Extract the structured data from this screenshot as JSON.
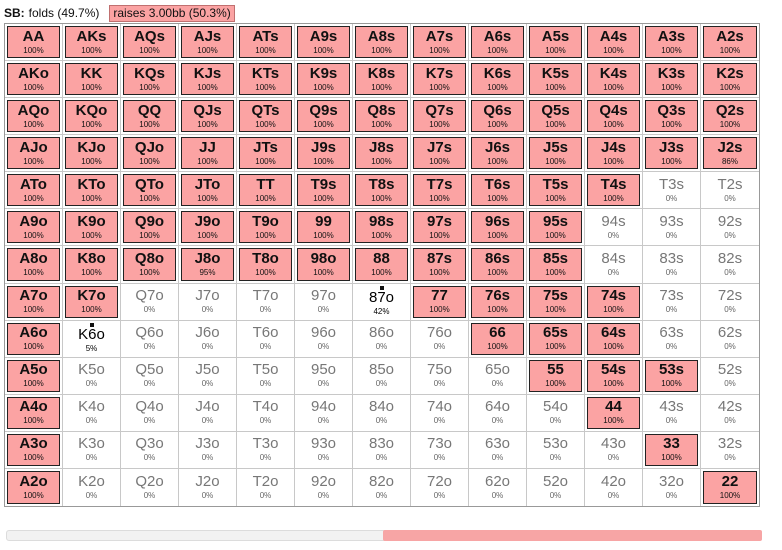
{
  "header": {
    "position": "SB:",
    "fold_text": "folds (49.7%)",
    "raise_text": "raises 3.00bb (50.3%)"
  },
  "colors": {
    "raise": "#fba3a3",
    "fold": "#ffffff"
  },
  "grid": {
    "rows": [
      [
        {
          "hand": "AA",
          "pct": "100%",
          "action": "raise"
        },
        {
          "hand": "AKs",
          "pct": "100%",
          "action": "raise"
        },
        {
          "hand": "AQs",
          "pct": "100%",
          "action": "raise"
        },
        {
          "hand": "AJs",
          "pct": "100%",
          "action": "raise"
        },
        {
          "hand": "ATs",
          "pct": "100%",
          "action": "raise"
        },
        {
          "hand": "A9s",
          "pct": "100%",
          "action": "raise"
        },
        {
          "hand": "A8s",
          "pct": "100%",
          "action": "raise"
        },
        {
          "hand": "A7s",
          "pct": "100%",
          "action": "raise"
        },
        {
          "hand": "A6s",
          "pct": "100%",
          "action": "raise"
        },
        {
          "hand": "A5s",
          "pct": "100%",
          "action": "raise"
        },
        {
          "hand": "A4s",
          "pct": "100%",
          "action": "raise"
        },
        {
          "hand": "A3s",
          "pct": "100%",
          "action": "raise"
        },
        {
          "hand": "A2s",
          "pct": "100%",
          "action": "raise"
        }
      ],
      [
        {
          "hand": "AKo",
          "pct": "100%",
          "action": "raise"
        },
        {
          "hand": "KK",
          "pct": "100%",
          "action": "raise"
        },
        {
          "hand": "KQs",
          "pct": "100%",
          "action": "raise"
        },
        {
          "hand": "KJs",
          "pct": "100%",
          "action": "raise"
        },
        {
          "hand": "KTs",
          "pct": "100%",
          "action": "raise"
        },
        {
          "hand": "K9s",
          "pct": "100%",
          "action": "raise"
        },
        {
          "hand": "K8s",
          "pct": "100%",
          "action": "raise"
        },
        {
          "hand": "K7s",
          "pct": "100%",
          "action": "raise"
        },
        {
          "hand": "K6s",
          "pct": "100%",
          "action": "raise"
        },
        {
          "hand": "K5s",
          "pct": "100%",
          "action": "raise"
        },
        {
          "hand": "K4s",
          "pct": "100%",
          "action": "raise"
        },
        {
          "hand": "K3s",
          "pct": "100%",
          "action": "raise"
        },
        {
          "hand": "K2s",
          "pct": "100%",
          "action": "raise"
        }
      ],
      [
        {
          "hand": "AQo",
          "pct": "100%",
          "action": "raise"
        },
        {
          "hand": "KQo",
          "pct": "100%",
          "action": "raise"
        },
        {
          "hand": "QQ",
          "pct": "100%",
          "action": "raise"
        },
        {
          "hand": "QJs",
          "pct": "100%",
          "action": "raise"
        },
        {
          "hand": "QTs",
          "pct": "100%",
          "action": "raise"
        },
        {
          "hand": "Q9s",
          "pct": "100%",
          "action": "raise"
        },
        {
          "hand": "Q8s",
          "pct": "100%",
          "action": "raise"
        },
        {
          "hand": "Q7s",
          "pct": "100%",
          "action": "raise"
        },
        {
          "hand": "Q6s",
          "pct": "100%",
          "action": "raise"
        },
        {
          "hand": "Q5s",
          "pct": "100%",
          "action": "raise"
        },
        {
          "hand": "Q4s",
          "pct": "100%",
          "action": "raise"
        },
        {
          "hand": "Q3s",
          "pct": "100%",
          "action": "raise"
        },
        {
          "hand": "Q2s",
          "pct": "100%",
          "action": "raise"
        }
      ],
      [
        {
          "hand": "AJo",
          "pct": "100%",
          "action": "raise"
        },
        {
          "hand": "KJo",
          "pct": "100%",
          "action": "raise"
        },
        {
          "hand": "QJo",
          "pct": "100%",
          "action": "raise"
        },
        {
          "hand": "JJ",
          "pct": "100%",
          "action": "raise"
        },
        {
          "hand": "JTs",
          "pct": "100%",
          "action": "raise"
        },
        {
          "hand": "J9s",
          "pct": "100%",
          "action": "raise"
        },
        {
          "hand": "J8s",
          "pct": "100%",
          "action": "raise"
        },
        {
          "hand": "J7s",
          "pct": "100%",
          "action": "raise"
        },
        {
          "hand": "J6s",
          "pct": "100%",
          "action": "raise"
        },
        {
          "hand": "J5s",
          "pct": "100%",
          "action": "raise"
        },
        {
          "hand": "J4s",
          "pct": "100%",
          "action": "raise"
        },
        {
          "hand": "J3s",
          "pct": "100%",
          "action": "raise"
        },
        {
          "hand": "J2s",
          "pct": "86%",
          "action": "partial"
        }
      ],
      [
        {
          "hand": "ATo",
          "pct": "100%",
          "action": "raise"
        },
        {
          "hand": "KTo",
          "pct": "100%",
          "action": "raise"
        },
        {
          "hand": "QTo",
          "pct": "100%",
          "action": "raise"
        },
        {
          "hand": "JTo",
          "pct": "100%",
          "action": "raise"
        },
        {
          "hand": "TT",
          "pct": "100%",
          "action": "raise"
        },
        {
          "hand": "T9s",
          "pct": "100%",
          "action": "raise"
        },
        {
          "hand": "T8s",
          "pct": "100%",
          "action": "raise"
        },
        {
          "hand": "T7s",
          "pct": "100%",
          "action": "raise"
        },
        {
          "hand": "T6s",
          "pct": "100%",
          "action": "raise"
        },
        {
          "hand": "T5s",
          "pct": "100%",
          "action": "raise"
        },
        {
          "hand": "T4s",
          "pct": "100%",
          "action": "raise"
        },
        {
          "hand": "T3s",
          "pct": "0%",
          "action": "fold"
        },
        {
          "hand": "T2s",
          "pct": "0%",
          "action": "fold"
        }
      ],
      [
        {
          "hand": "A9o",
          "pct": "100%",
          "action": "raise"
        },
        {
          "hand": "K9o",
          "pct": "100%",
          "action": "raise"
        },
        {
          "hand": "Q9o",
          "pct": "100%",
          "action": "raise"
        },
        {
          "hand": "J9o",
          "pct": "100%",
          "action": "raise"
        },
        {
          "hand": "T9o",
          "pct": "100%",
          "action": "raise"
        },
        {
          "hand": "99",
          "pct": "100%",
          "action": "raise"
        },
        {
          "hand": "98s",
          "pct": "100%",
          "action": "raise"
        },
        {
          "hand": "97s",
          "pct": "100%",
          "action": "raise"
        },
        {
          "hand": "96s",
          "pct": "100%",
          "action": "raise"
        },
        {
          "hand": "95s",
          "pct": "100%",
          "action": "raise"
        },
        {
          "hand": "94s",
          "pct": "0%",
          "action": "fold"
        },
        {
          "hand": "93s",
          "pct": "0%",
          "action": "fold"
        },
        {
          "hand": "92s",
          "pct": "0%",
          "action": "fold"
        }
      ],
      [
        {
          "hand": "A8o",
          "pct": "100%",
          "action": "raise"
        },
        {
          "hand": "K8o",
          "pct": "100%",
          "action": "raise"
        },
        {
          "hand": "Q8o",
          "pct": "100%",
          "action": "raise"
        },
        {
          "hand": "J8o",
          "pct": "95%",
          "action": "partial"
        },
        {
          "hand": "T8o",
          "pct": "100%",
          "action": "raise"
        },
        {
          "hand": "98o",
          "pct": "100%",
          "action": "raise"
        },
        {
          "hand": "88",
          "pct": "100%",
          "action": "raise"
        },
        {
          "hand": "87s",
          "pct": "100%",
          "action": "raise"
        },
        {
          "hand": "86s",
          "pct": "100%",
          "action": "raise"
        },
        {
          "hand": "85s",
          "pct": "100%",
          "action": "raise"
        },
        {
          "hand": "84s",
          "pct": "0%",
          "action": "fold"
        },
        {
          "hand": "83s",
          "pct": "0%",
          "action": "fold"
        },
        {
          "hand": "82s",
          "pct": "0%",
          "action": "fold"
        }
      ],
      [
        {
          "hand": "A7o",
          "pct": "100%",
          "action": "raise"
        },
        {
          "hand": "K7o",
          "pct": "100%",
          "action": "raise"
        },
        {
          "hand": "Q7o",
          "pct": "0%",
          "action": "fold"
        },
        {
          "hand": "J7o",
          "pct": "0%",
          "action": "fold"
        },
        {
          "hand": "T7o",
          "pct": "0%",
          "action": "fold"
        },
        {
          "hand": "97o",
          "pct": "0%",
          "action": "fold"
        },
        {
          "hand": "87o",
          "pct": "42%",
          "action": "highlight"
        },
        {
          "hand": "77",
          "pct": "100%",
          "action": "raise"
        },
        {
          "hand": "76s",
          "pct": "100%",
          "action": "raise"
        },
        {
          "hand": "75s",
          "pct": "100%",
          "action": "raise"
        },
        {
          "hand": "74s",
          "pct": "100%",
          "action": "raise"
        },
        {
          "hand": "73s",
          "pct": "0%",
          "action": "fold"
        },
        {
          "hand": "72s",
          "pct": "0%",
          "action": "fold"
        }
      ],
      [
        {
          "hand": "A6o",
          "pct": "100%",
          "action": "raise"
        },
        {
          "hand": "K6o",
          "pct": "5%",
          "action": "highlight"
        },
        {
          "hand": "Q6o",
          "pct": "0%",
          "action": "fold"
        },
        {
          "hand": "J6o",
          "pct": "0%",
          "action": "fold"
        },
        {
          "hand": "T6o",
          "pct": "0%",
          "action": "fold"
        },
        {
          "hand": "96o",
          "pct": "0%",
          "action": "fold"
        },
        {
          "hand": "86o",
          "pct": "0%",
          "action": "fold"
        },
        {
          "hand": "76o",
          "pct": "0%",
          "action": "fold"
        },
        {
          "hand": "66",
          "pct": "100%",
          "action": "raise"
        },
        {
          "hand": "65s",
          "pct": "100%",
          "action": "raise"
        },
        {
          "hand": "64s",
          "pct": "100%",
          "action": "raise"
        },
        {
          "hand": "63s",
          "pct": "0%",
          "action": "fold"
        },
        {
          "hand": "62s",
          "pct": "0%",
          "action": "fold"
        }
      ],
      [
        {
          "hand": "A5o",
          "pct": "100%",
          "action": "raise"
        },
        {
          "hand": "K5o",
          "pct": "0%",
          "action": "fold"
        },
        {
          "hand": "Q5o",
          "pct": "0%",
          "action": "fold"
        },
        {
          "hand": "J5o",
          "pct": "0%",
          "action": "fold"
        },
        {
          "hand": "T5o",
          "pct": "0%",
          "action": "fold"
        },
        {
          "hand": "95o",
          "pct": "0%",
          "action": "fold"
        },
        {
          "hand": "85o",
          "pct": "0%",
          "action": "fold"
        },
        {
          "hand": "75o",
          "pct": "0%",
          "action": "fold"
        },
        {
          "hand": "65o",
          "pct": "0%",
          "action": "fold"
        },
        {
          "hand": "55",
          "pct": "100%",
          "action": "raise"
        },
        {
          "hand": "54s",
          "pct": "100%",
          "action": "raise"
        },
        {
          "hand": "53s",
          "pct": "100%",
          "action": "raise"
        },
        {
          "hand": "52s",
          "pct": "0%",
          "action": "fold"
        }
      ],
      [
        {
          "hand": "A4o",
          "pct": "100%",
          "action": "raise"
        },
        {
          "hand": "K4o",
          "pct": "0%",
          "action": "fold"
        },
        {
          "hand": "Q4o",
          "pct": "0%",
          "action": "fold"
        },
        {
          "hand": "J4o",
          "pct": "0%",
          "action": "fold"
        },
        {
          "hand": "T4o",
          "pct": "0%",
          "action": "fold"
        },
        {
          "hand": "94o",
          "pct": "0%",
          "action": "fold"
        },
        {
          "hand": "84o",
          "pct": "0%",
          "action": "fold"
        },
        {
          "hand": "74o",
          "pct": "0%",
          "action": "fold"
        },
        {
          "hand": "64o",
          "pct": "0%",
          "action": "fold"
        },
        {
          "hand": "54o",
          "pct": "0%",
          "action": "fold"
        },
        {
          "hand": "44",
          "pct": "100%",
          "action": "raise"
        },
        {
          "hand": "43s",
          "pct": "0%",
          "action": "fold"
        },
        {
          "hand": "42s",
          "pct": "0%",
          "action": "fold"
        }
      ],
      [
        {
          "hand": "A3o",
          "pct": "100%",
          "action": "raise"
        },
        {
          "hand": "K3o",
          "pct": "0%",
          "action": "fold"
        },
        {
          "hand": "Q3o",
          "pct": "0%",
          "action": "fold"
        },
        {
          "hand": "J3o",
          "pct": "0%",
          "action": "fold"
        },
        {
          "hand": "T3o",
          "pct": "0%",
          "action": "fold"
        },
        {
          "hand": "93o",
          "pct": "0%",
          "action": "fold"
        },
        {
          "hand": "83o",
          "pct": "0%",
          "action": "fold"
        },
        {
          "hand": "73o",
          "pct": "0%",
          "action": "fold"
        },
        {
          "hand": "63o",
          "pct": "0%",
          "action": "fold"
        },
        {
          "hand": "53o",
          "pct": "0%",
          "action": "fold"
        },
        {
          "hand": "43o",
          "pct": "0%",
          "action": "fold"
        },
        {
          "hand": "33",
          "pct": "100%",
          "action": "raise"
        },
        {
          "hand": "32s",
          "pct": "0%",
          "action": "fold"
        }
      ],
      [
        {
          "hand": "A2o",
          "pct": "100%",
          "action": "raise"
        },
        {
          "hand": "K2o",
          "pct": "0%",
          "action": "fold"
        },
        {
          "hand": "Q2o",
          "pct": "0%",
          "action": "fold"
        },
        {
          "hand": "J2o",
          "pct": "0%",
          "action": "fold"
        },
        {
          "hand": "T2o",
          "pct": "0%",
          "action": "fold"
        },
        {
          "hand": "92o",
          "pct": "0%",
          "action": "fold"
        },
        {
          "hand": "82o",
          "pct": "0%",
          "action": "fold"
        },
        {
          "hand": "72o",
          "pct": "0%",
          "action": "fold"
        },
        {
          "hand": "62o",
          "pct": "0%",
          "action": "fold"
        },
        {
          "hand": "52o",
          "pct": "0%",
          "action": "fold"
        },
        {
          "hand": "42o",
          "pct": "0%",
          "action": "fold"
        },
        {
          "hand": "32o",
          "pct": "0%",
          "action": "fold"
        },
        {
          "hand": "22",
          "pct": "100%",
          "action": "raise"
        }
      ]
    ]
  },
  "frequency_bar": {
    "fold_fraction": 0.497,
    "raise_fraction": 0.503
  }
}
